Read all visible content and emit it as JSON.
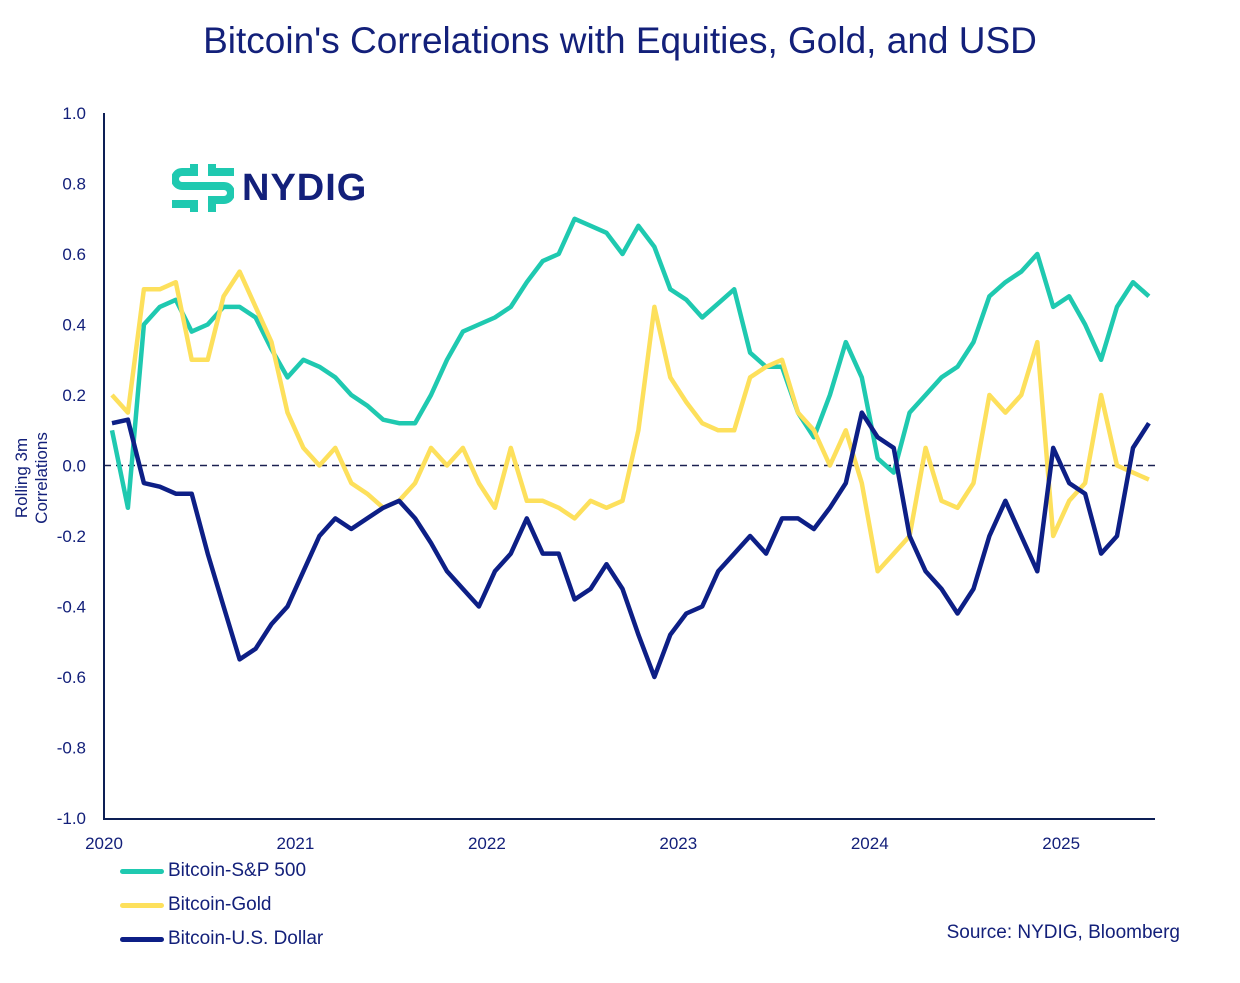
{
  "chart_data": {
    "type": "line",
    "title": "Bitcoin's Correlations with Equities, Gold, and USD",
    "ylabel": "Rolling 3m Correlations",
    "xlabel": "",
    "ylim": [
      -1.0,
      1.0
    ],
    "xlim": [
      "2020-01",
      "2025-06"
    ],
    "yticks": [
      "1.0",
      "0.8",
      "0.6",
      "0.4",
      "0.2",
      "0.0",
      "-0.2",
      "-0.4",
      "-0.6",
      "-0.8",
      "-1.0"
    ],
    "xticks": [
      "2020",
      "2021",
      "2022",
      "2023",
      "2024",
      "2025"
    ],
    "grid": false,
    "zero_line": "dashed",
    "legend_placement": "bottom-left",
    "source": "Source: NYDIG, Bloomberg",
    "logo_text": "NYDIG",
    "x": [
      "2020-01",
      "2020-02",
      "2020-03",
      "2020-04",
      "2020-05",
      "2020-06",
      "2020-07",
      "2020-08",
      "2020-09",
      "2020-10",
      "2020-11",
      "2020-12",
      "2021-01",
      "2021-02",
      "2021-03",
      "2021-04",
      "2021-05",
      "2021-06",
      "2021-07",
      "2021-08",
      "2021-09",
      "2021-10",
      "2021-11",
      "2021-12",
      "2022-01",
      "2022-02",
      "2022-03",
      "2022-04",
      "2022-05",
      "2022-06",
      "2022-07",
      "2022-08",
      "2022-09",
      "2022-10",
      "2022-11",
      "2022-12",
      "2023-01",
      "2023-02",
      "2023-03",
      "2023-04",
      "2023-05",
      "2023-06",
      "2023-07",
      "2023-08",
      "2023-09",
      "2023-10",
      "2023-11",
      "2023-12",
      "2024-01",
      "2024-02",
      "2024-03",
      "2024-04",
      "2024-05",
      "2024-06",
      "2024-07",
      "2024-08",
      "2024-09",
      "2024-10",
      "2024-11",
      "2024-12",
      "2025-01",
      "2025-02",
      "2025-03",
      "2025-04",
      "2025-05",
      "2025-06"
    ],
    "series": [
      {
        "name": "Bitcoin-S&P 500",
        "color": "#1fc9b0",
        "values": [
          0.1,
          -0.12,
          0.4,
          0.45,
          0.47,
          0.38,
          0.4,
          0.45,
          0.45,
          0.42,
          0.33,
          0.25,
          0.3,
          0.28,
          0.25,
          0.2,
          0.17,
          0.13,
          0.12,
          0.12,
          0.2,
          0.3,
          0.38,
          0.4,
          0.42,
          0.45,
          0.52,
          0.58,
          0.6,
          0.7,
          0.68,
          0.66,
          0.6,
          0.68,
          0.62,
          0.5,
          0.47,
          0.42,
          0.46,
          0.5,
          0.32,
          0.28,
          0.28,
          0.15,
          0.08,
          0.2,
          0.35,
          0.25,
          0.02,
          -0.02,
          0.15,
          0.2,
          0.25,
          0.28,
          0.35,
          0.48,
          0.52,
          0.55,
          0.6,
          0.45,
          0.48,
          0.4,
          0.3,
          0.45,
          0.52,
          0.48
        ]
      },
      {
        "name": "Bitcoin-Gold",
        "color": "#fde05c",
        "values": [
          0.2,
          0.15,
          0.5,
          0.5,
          0.52,
          0.3,
          0.3,
          0.48,
          0.55,
          0.45,
          0.35,
          0.15,
          0.05,
          0.0,
          0.05,
          -0.05,
          -0.08,
          -0.12,
          -0.1,
          -0.05,
          0.05,
          0.0,
          0.05,
          -0.05,
          -0.12,
          0.05,
          -0.1,
          -0.1,
          -0.12,
          -0.15,
          -0.1,
          -0.12,
          -0.1,
          0.1,
          0.45,
          0.25,
          0.18,
          0.12,
          0.1,
          0.1,
          0.25,
          0.28,
          0.3,
          0.15,
          0.1,
          0.0,
          0.1,
          -0.05,
          -0.3,
          -0.25,
          -0.2,
          0.05,
          -0.1,
          -0.12,
          -0.05,
          0.2,
          0.15,
          0.2,
          0.35,
          -0.2,
          -0.1,
          -0.05,
          0.2,
          0.0,
          -0.02,
          -0.04
        ]
      },
      {
        "name": "Bitcoin-U.S. Dollar",
        "color": "#0d1f86",
        "values": [
          0.12,
          0.13,
          -0.05,
          -0.06,
          -0.08,
          -0.08,
          -0.25,
          -0.4,
          -0.55,
          -0.52,
          -0.45,
          -0.4,
          -0.3,
          -0.2,
          -0.15,
          -0.18,
          -0.15,
          -0.12,
          -0.1,
          -0.15,
          -0.22,
          -0.3,
          -0.35,
          -0.4,
          -0.3,
          -0.25,
          -0.15,
          -0.25,
          -0.25,
          -0.38,
          -0.35,
          -0.28,
          -0.35,
          -0.48,
          -0.6,
          -0.48,
          -0.42,
          -0.4,
          -0.3,
          -0.25,
          -0.2,
          -0.25,
          -0.15,
          -0.15,
          -0.18,
          -0.12,
          -0.05,
          0.15,
          0.08,
          0.05,
          -0.2,
          -0.3,
          -0.35,
          -0.42,
          -0.35,
          -0.2,
          -0.1,
          -0.2,
          -0.3,
          0.05,
          -0.05,
          -0.08,
          -0.25,
          -0.2,
          0.05,
          0.12
        ]
      }
    ]
  }
}
